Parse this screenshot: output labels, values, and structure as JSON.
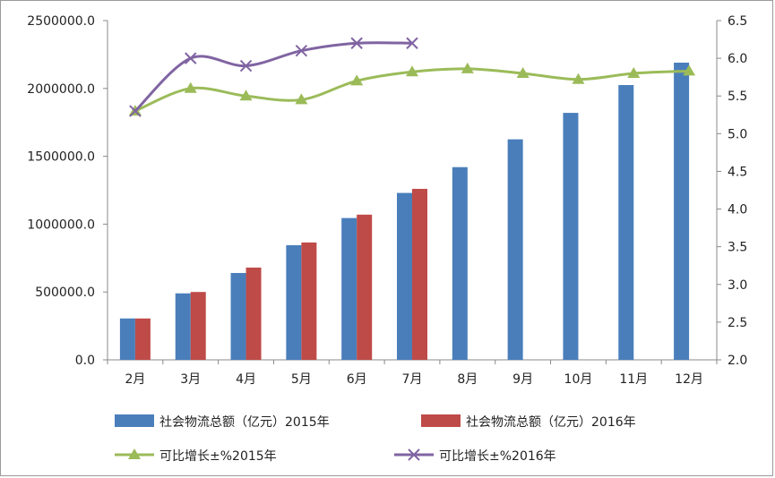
{
  "chart_data": {
    "type": "bar",
    "categories": [
      "2月",
      "3月",
      "4月",
      "5月",
      "6月",
      "7月",
      "8月",
      "9月",
      "10月",
      "11月",
      "12月"
    ],
    "left_axis": {
      "ylim": [
        0,
        2500000
      ],
      "ticks": [
        "0.0",
        "500000.0",
        "1000000.0",
        "1500000.0",
        "2000000.0",
        "2500000.0"
      ],
      "tick_values": [
        0,
        500000,
        1000000,
        1500000,
        2000000,
        2500000
      ]
    },
    "right_axis": {
      "ylim": [
        2.0,
        6.5
      ],
      "ticks": [
        "2.0",
        "2.5",
        "3.0",
        "3.5",
        "4.0",
        "4.5",
        "5.0",
        "5.5",
        "6.0",
        "6.5"
      ],
      "tick_values": [
        2.0,
        2.5,
        3.0,
        3.5,
        4.0,
        4.5,
        5.0,
        5.5,
        6.0,
        6.5
      ]
    },
    "bar_series": [
      {
        "name": "社会物流总额（亿元）2015年",
        "color": "#4a7ebb",
        "values": [
          305000,
          490000,
          640000,
          845000,
          1045000,
          1230000,
          1420000,
          1625000,
          1820000,
          2025000,
          2190000
        ]
      },
      {
        "name": "社会物流总额（亿元）2016年",
        "color": "#be4b48",
        "values": [
          305000,
          500000,
          680000,
          865000,
          1070000,
          1260000,
          null,
          null,
          null,
          null,
          null
        ]
      }
    ],
    "line_series": [
      {
        "name": "可比增长±%2015年",
        "color": "#9bbb59",
        "marker": "triangle",
        "values": [
          5.3,
          5.6,
          5.5,
          5.45,
          5.7,
          5.82,
          5.86,
          5.8,
          5.72,
          5.8,
          5.83
        ]
      },
      {
        "name": "可比增长±%2016年",
        "color": "#8064a2",
        "marker": "x",
        "values": [
          5.3,
          6.0,
          5.9,
          6.1,
          6.2,
          6.2,
          null,
          null,
          null,
          null,
          null
        ]
      }
    ],
    "grid": false,
    "legend_position": "bottom"
  }
}
